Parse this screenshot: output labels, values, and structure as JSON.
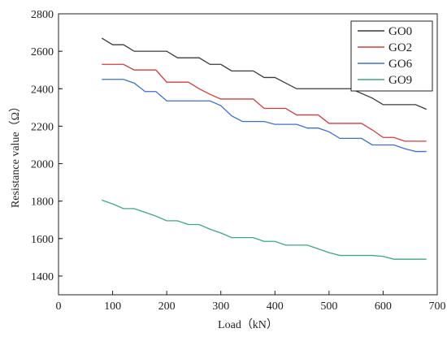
{
  "chart_data": {
    "type": "line",
    "title": "",
    "xlabel": "Load（kN）",
    "ylabel": "Resistance value（Ω）",
    "xlim": [
      0,
      700
    ],
    "ylim": [
      1300,
      2800
    ],
    "x_ticks": [
      0,
      100,
      200,
      300,
      400,
      500,
      600,
      700
    ],
    "y_ticks": [
      1400,
      1600,
      1800,
      2000,
      2200,
      2400,
      2600,
      2800
    ],
    "grid": false,
    "legend_position": "top-right",
    "series": [
      {
        "name": "GO0",
        "color": "#3a3a3a",
        "points": [
          [
            80,
            2670
          ],
          [
            100,
            2635
          ],
          [
            120,
            2635
          ],
          [
            140,
            2600
          ],
          [
            160,
            2600
          ],
          [
            200,
            2600
          ],
          [
            220,
            2565
          ],
          [
            260,
            2565
          ],
          [
            280,
            2530
          ],
          [
            300,
            2530
          ],
          [
            320,
            2495
          ],
          [
            360,
            2495
          ],
          [
            380,
            2460
          ],
          [
            400,
            2460
          ],
          [
            440,
            2400
          ],
          [
            540,
            2400
          ],
          [
            580,
            2350
          ],
          [
            600,
            2315
          ],
          [
            660,
            2315
          ],
          [
            680,
            2290
          ]
        ]
      },
      {
        "name": "GO2",
        "color": "#d63b3b",
        "points": [
          [
            80,
            2530
          ],
          [
            120,
            2530
          ],
          [
            140,
            2500
          ],
          [
            180,
            2500
          ],
          [
            200,
            2435
          ],
          [
            240,
            2435
          ],
          [
            260,
            2400
          ],
          [
            280,
            2370
          ],
          [
            300,
            2345
          ],
          [
            360,
            2345
          ],
          [
            380,
            2295
          ],
          [
            420,
            2295
          ],
          [
            440,
            2260
          ],
          [
            480,
            2260
          ],
          [
            500,
            2215
          ],
          [
            560,
            2215
          ],
          [
            580,
            2180
          ],
          [
            600,
            2140
          ],
          [
            620,
            2140
          ],
          [
            640,
            2120
          ],
          [
            680,
            2120
          ]
        ]
      },
      {
        "name": "GO6",
        "color": "#3b6fd6",
        "points": [
          [
            80,
            2450
          ],
          [
            120,
            2450
          ],
          [
            140,
            2430
          ],
          [
            160,
            2385
          ],
          [
            180,
            2385
          ],
          [
            200,
            2335
          ],
          [
            280,
            2335
          ],
          [
            300,
            2310
          ],
          [
            320,
            2255
          ],
          [
            340,
            2225
          ],
          [
            380,
            2225
          ],
          [
            400,
            2210
          ],
          [
            440,
            2210
          ],
          [
            460,
            2190
          ],
          [
            480,
            2190
          ],
          [
            500,
            2170
          ],
          [
            520,
            2135
          ],
          [
            560,
            2135
          ],
          [
            580,
            2100
          ],
          [
            620,
            2100
          ],
          [
            640,
            2080
          ],
          [
            660,
            2065
          ],
          [
            680,
            2065
          ]
        ]
      },
      {
        "name": "GO9",
        "color": "#3ea97a",
        "points": [
          [
            80,
            1805
          ],
          [
            100,
            1785
          ],
          [
            120,
            1760
          ],
          [
            140,
            1760
          ],
          [
            160,
            1740
          ],
          [
            180,
            1720
          ],
          [
            200,
            1695
          ],
          [
            220,
            1695
          ],
          [
            240,
            1675
          ],
          [
            260,
            1675
          ],
          [
            280,
            1650
          ],
          [
            300,
            1630
          ],
          [
            320,
            1605
          ],
          [
            360,
            1605
          ],
          [
            380,
            1585
          ],
          [
            400,
            1585
          ],
          [
            420,
            1565
          ],
          [
            460,
            1565
          ],
          [
            480,
            1545
          ],
          [
            500,
            1525
          ],
          [
            520,
            1510
          ],
          [
            580,
            1510
          ],
          [
            600,
            1505
          ],
          [
            620,
            1490
          ],
          [
            680,
            1490
          ]
        ]
      }
    ]
  }
}
